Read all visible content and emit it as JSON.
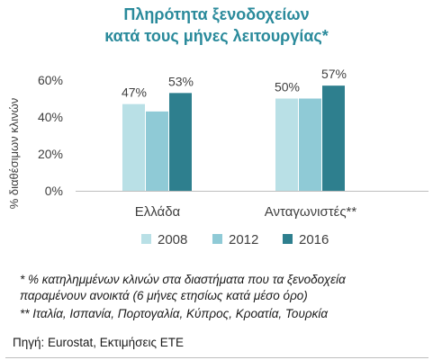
{
  "chart_data": {
    "type": "bar",
    "title": [
      "Πληρότητα ξενοδοχείων",
      "κατά τους μήνες λειτουργίας*"
    ],
    "ylabel": "% διαθέσιμων κλινών",
    "ylim": [
      0,
      60
    ],
    "yticks": [
      {
        "value": 0,
        "label": "0%"
      },
      {
        "value": 20,
        "label": "20%"
      },
      {
        "value": 40,
        "label": "40%"
      },
      {
        "value": 60,
        "label": "60%"
      }
    ],
    "categories": [
      "Ελλάδα",
      "Ανταγωνιστές**"
    ],
    "series": [
      {
        "name": "2008",
        "color": "#b9e0e6",
        "values": [
          47,
          50
        ],
        "labels": [
          "47%",
          "50%"
        ]
      },
      {
        "name": "2012",
        "color": "#8fcad6",
        "values": [
          43,
          50
        ],
        "labels": [
          "",
          ""
        ]
      },
      {
        "name": "2016",
        "color": "#2e7f8e",
        "values": [
          53,
          57
        ],
        "labels": [
          "53%",
          "57%"
        ]
      }
    ],
    "legend_position": "bottom",
    "grid": false
  },
  "footnotes": [
    "* % κατηλημμένων κλινών στα διαστήματα που τα ξενοδοχεία",
    "παραμένουν ανοικτά (6 μήνες ετησίως κατά μέσο όρο)",
    "** Ιταλία, Ισπανία, Πορτογαλία, Κύπρος, Κροατία, Τουρκία"
  ],
  "source": "Πηγή: Eurostat, Εκτιμήσεις ΕΤΕ"
}
